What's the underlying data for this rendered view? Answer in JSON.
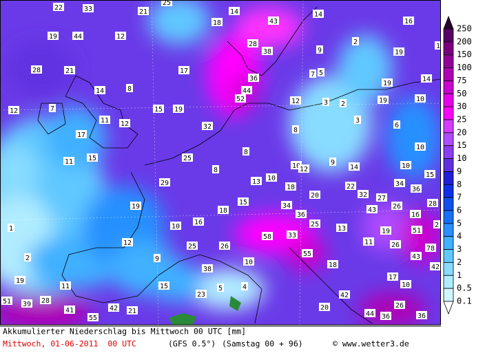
{
  "map": {
    "labels": [
      22,
      33,
      21,
      25,
      14,
      14,
      18,
      43,
      16,
      19,
      44,
      12,
      28,
      38,
      9,
      2,
      19,
      1,
      28,
      21,
      17,
      36,
      7,
      5,
      14,
      14,
      8,
      44,
      19,
      52,
      12,
      3,
      2,
      19,
      10,
      12,
      7,
      15,
      19,
      11,
      12,
      32,
      3,
      6,
      17,
      8,
      8,
      10,
      11,
      15,
      25,
      9,
      14,
      10,
      10,
      12,
      15,
      8,
      13,
      10,
      18,
      29,
      22,
      34,
      36,
      20,
      32,
      27,
      28,
      19,
      34,
      15,
      18,
      43,
      26,
      36,
      16,
      1,
      10,
      16,
      25,
      13,
      19,
      51,
      2,
      58,
      33,
      12,
      11,
      26,
      25,
      26,
      55,
      78,
      2,
      9,
      43,
      10,
      18,
      38,
      42,
      19,
      11,
      15,
      5,
      4,
      17,
      10,
      23,
      42,
      51,
      39,
      28,
      41,
      42,
      21,
      26,
      20,
      44,
      36,
      36,
      55
    ],
    "colorbar": [
      250,
      200,
      150,
      100,
      75,
      50,
      30,
      25,
      20,
      15,
      10,
      9,
      8,
      7,
      6,
      5,
      4,
      3,
      2,
      1,
      0.5,
      0.1
    ]
  },
  "footer": {
    "title": "Akkumulierter Niederschlag bis Mittwoch 00 UTC [mm]",
    "date": "Mittwoch, 01-06-2011  00 UTC",
    "model": "(GFS 0.5°)",
    "run": "(Samstag 00 + 96)",
    "copyright": "© www.wetter3.de"
  }
}
